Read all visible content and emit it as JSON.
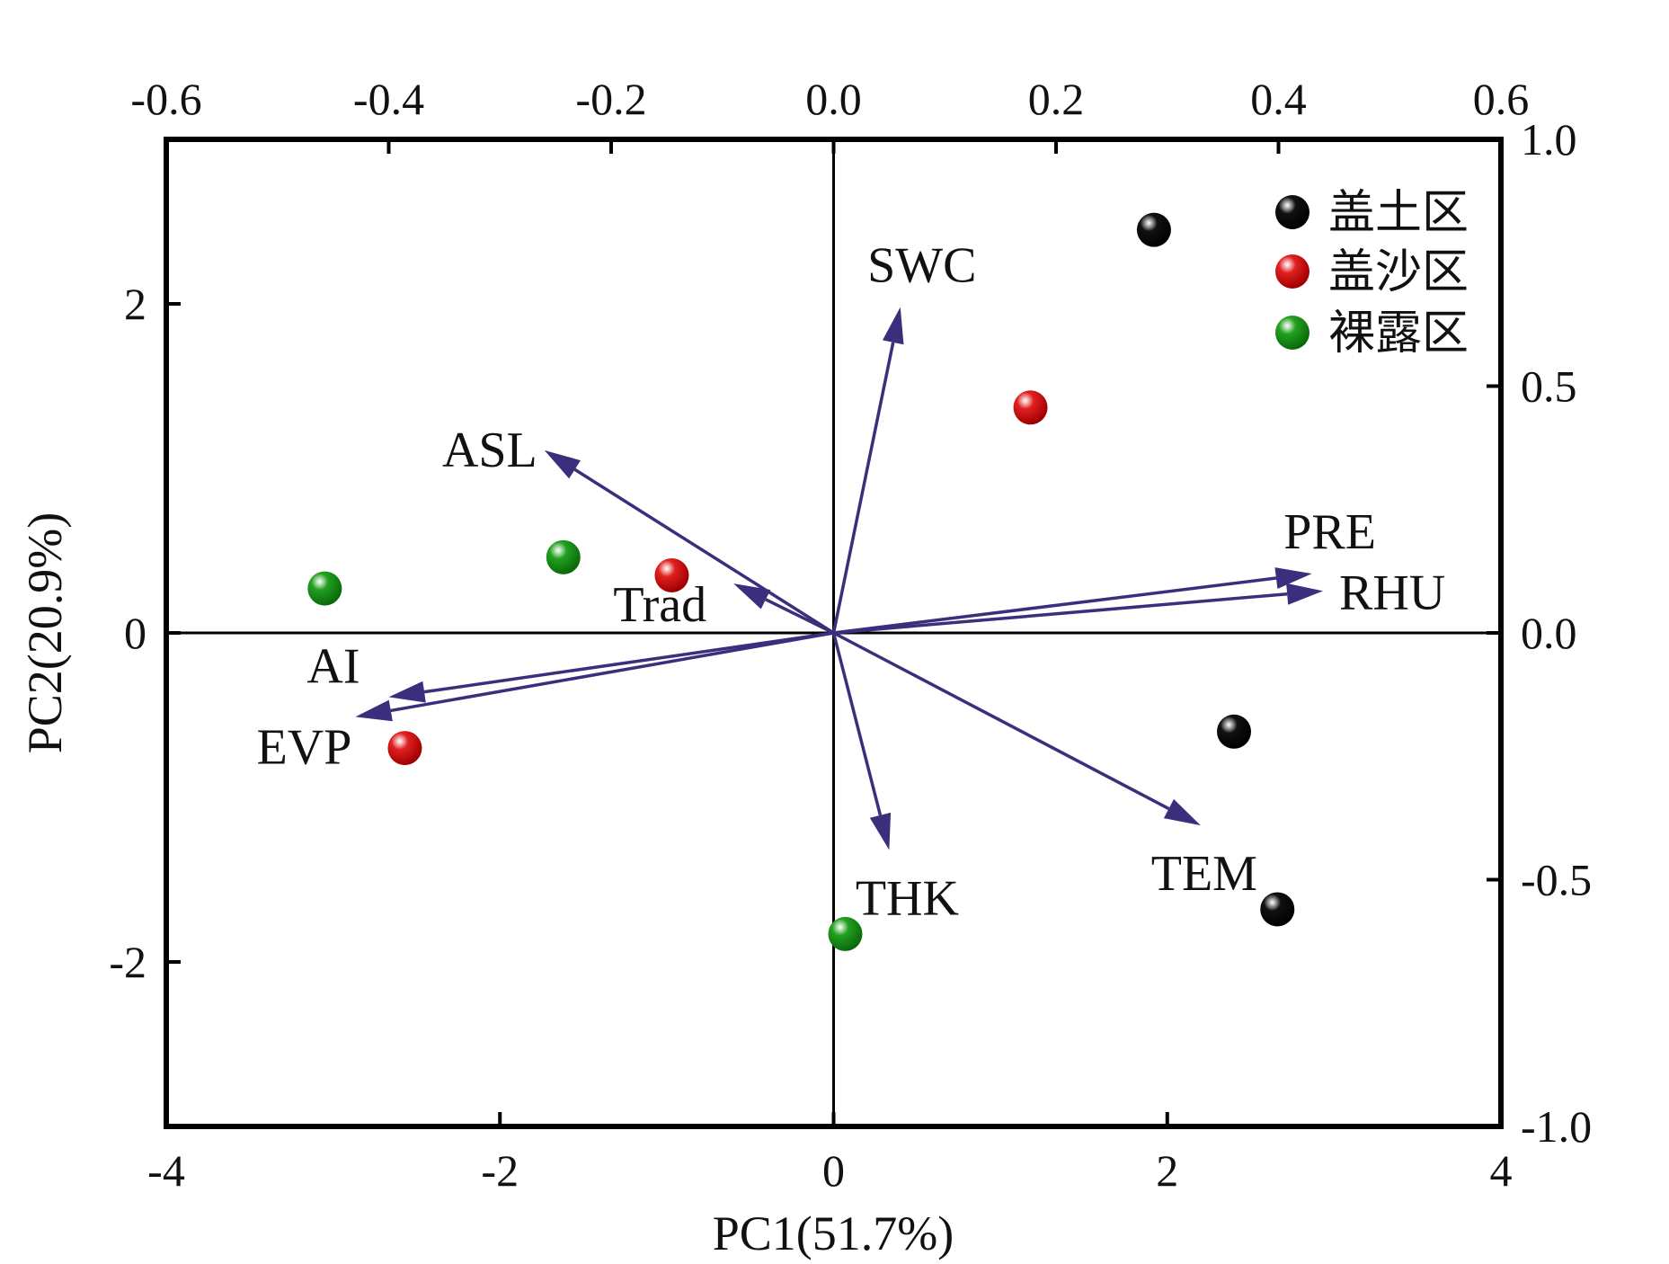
{
  "chart_data": {
    "type": "scatter",
    "xlabel": "PC1(51.7%)",
    "ylabel": "PC2(20.9%)",
    "xlim": [
      -4,
      4
    ],
    "ylim": [
      -3,
      3
    ],
    "x_ticks": [
      "-4",
      "-2",
      "0",
      "2",
      "4"
    ],
    "y_ticks": [
      "-2",
      "0",
      "2"
    ],
    "top_xlim": [
      -0.6,
      0.6
    ],
    "top_ticks": [
      "-0.6",
      "-0.4",
      "-0.2",
      "0.0",
      "0.2",
      "0.4",
      "0.6"
    ],
    "right_ylim": [
      -1.0,
      1.0
    ],
    "right_ticks": [
      "-1.0",
      "-0.5",
      "0.0",
      "0.5",
      "1.0"
    ],
    "legend_position": "top-right",
    "series": [
      {
        "name": "盖土区",
        "color": "#111111",
        "points": [
          [
            1.92,
            2.45
          ],
          [
            2.4,
            -0.6
          ],
          [
            2.66,
            -1.68
          ]
        ]
      },
      {
        "name": "盖沙区",
        "color": "#e02020",
        "points": [
          [
            1.18,
            1.37
          ],
          [
            -0.97,
            0.35
          ],
          [
            -2.57,
            -0.7
          ]
        ]
      },
      {
        "name": "裸露区",
        "color": "#22a020",
        "points": [
          [
            -3.05,
            0.27
          ],
          [
            -1.62,
            0.46
          ],
          [
            0.07,
            -1.83
          ]
        ]
      }
    ],
    "loadings": [
      {
        "name": "SWC",
        "x": 0.06,
        "y": 0.66
      },
      {
        "name": "ASL",
        "x": -0.26,
        "y": 0.37
      },
      {
        "name": "Trad",
        "x": -0.09,
        "y": 0.1
      },
      {
        "name": "PRE",
        "x": 0.43,
        "y": 0.12
      },
      {
        "name": "RHU",
        "x": 0.44,
        "y": 0.085
      },
      {
        "name": "AI",
        "x": -0.4,
        "y": -0.13
      },
      {
        "name": "EVP",
        "x": -0.43,
        "y": -0.17
      },
      {
        "name": "THK",
        "x": 0.05,
        "y": -0.44
      },
      {
        "name": "TEM",
        "x": 0.33,
        "y": -0.39
      }
    ],
    "vector_color": "#3a2f7d",
    "grid": false
  }
}
